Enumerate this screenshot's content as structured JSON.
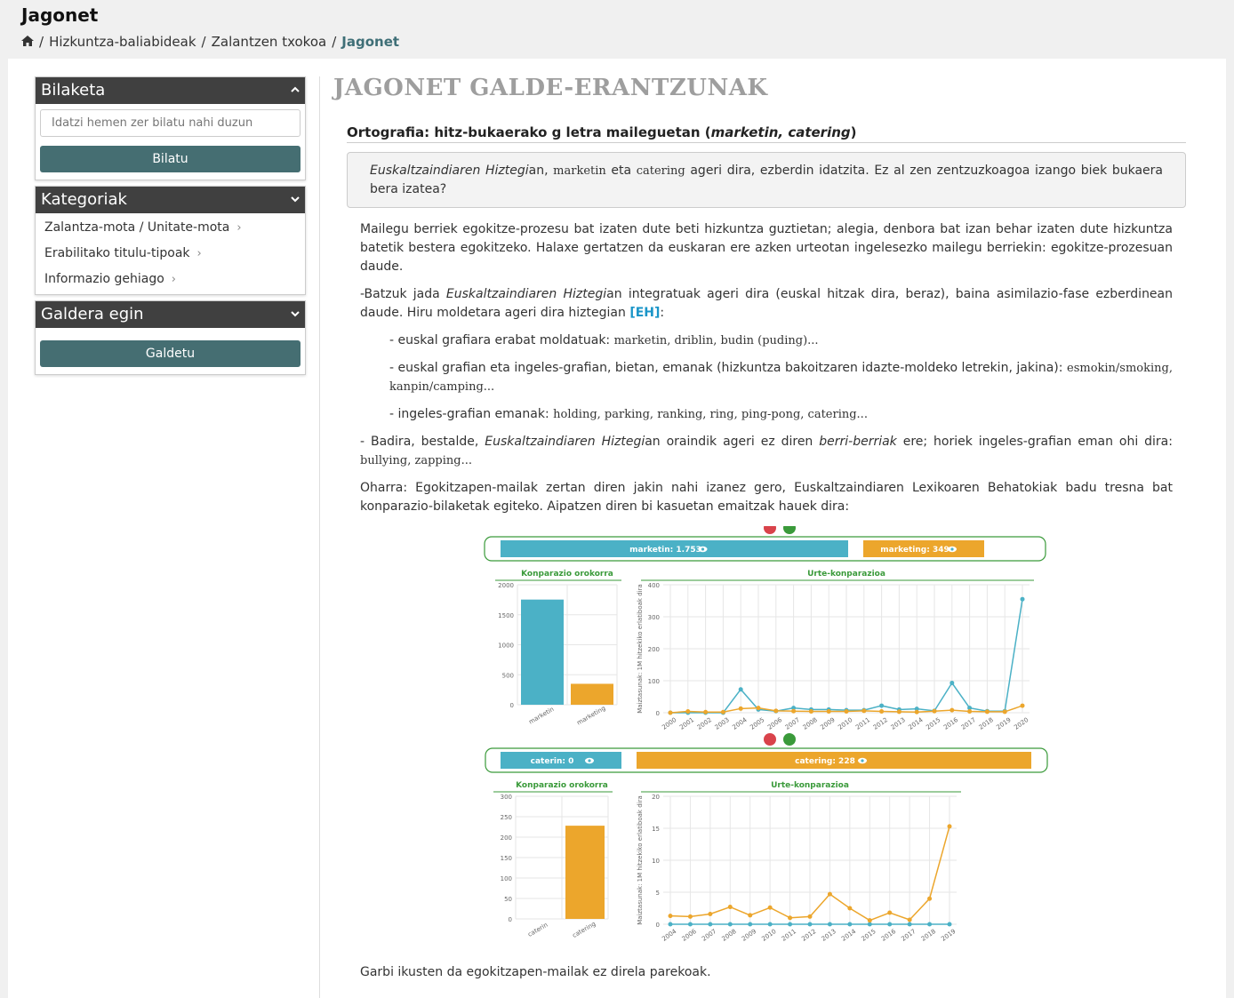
{
  "header": {
    "title": "Jagonet",
    "breadcrumb": [
      "Hizkuntza-baliabideak",
      "Zalantzen txokoa",
      "Jagonet"
    ]
  },
  "sidebar": {
    "search": {
      "title": "Bilaketa",
      "placeholder": "Idatzi hemen zer bilatu nahi duzun",
      "button": "Bilatu"
    },
    "categories": {
      "title": "Kategoriak",
      "items": [
        "Zalantza-mota / Unitate-mota",
        "Erabilitako titulu-tipoak",
        "Informazio gehiago"
      ]
    },
    "ask": {
      "title": "Galdera egin",
      "button": "Galdetu"
    }
  },
  "content": {
    "page_title": "JAGONET GALDE-ERANTZUNAK",
    "question_title": "Ortografia: hitz-bukaerako g letra maileguetan (",
    "question_title_em": "marketin, catering",
    "question_title_end": ")",
    "question": {
      "em1": "Euskaltzaindiaren Hiztegi",
      "t1": "an, ",
      "s1": "marketin",
      "t2": " eta ",
      "s2": "catering",
      "t3": " ageri dira, ezberdin idatzita. Ez al zen zentzuzkoagoa izango biek bukaera bera izatea?"
    },
    "p1": "Mailegu berriek egokitze-prozesu bat izaten dute beti hizkuntza guztietan; alegia, denbora bat izan behar izaten dute hizkuntza batetik bestera egokitzeko. Halaxe gertatzen da euskaran ere azken urteotan ingelesezko mailegu berriekin: egokitze-prozesuan daude.",
    "p2": {
      "t1": "-Batzuk jada ",
      "em": "Euskaltzaindiaren Hiztegi",
      "t2": "an integratuak ageri dira (euskal hitzak dira, beraz), baina asimilazio-fase ezberdinean daude. Hiru moldetara ageri dira hiztegian ",
      "link": "[EH]",
      "t3": ":"
    },
    "l1": {
      "t": "- euskal grafiara erabat moldatuak: ",
      "s": "marketin, driblin, budin (puding)..."
    },
    "l2": {
      "t": "- euskal grafian eta ingeles-grafian, bietan, emanak (hizkuntza bakoitzaren idazte-moldeko letrekin, jakina): ",
      "s": "esmokin/smoking, kanpin/camping..."
    },
    "l3": {
      "t": "- ingeles-grafian emanak: ",
      "s": "holding, parking, ranking, ring, ping-pong, catering..."
    },
    "p3": {
      "t1": "- Badira, bestalde, ",
      "em1": "Euskaltzaindiaren Hiztegi",
      "t2": "an oraindik ageri ez diren ",
      "em2": "berri-berriak",
      "t3": " ere; horiek ingeles-grafian eman ohi dira: ",
      "s": "bullying, zapping..."
    },
    "p4": "Oharra: Egokitzapen-mailak zertan diren jakin nahi izanez gero, Euskaltzaindiaren Lexikoaren Behatokiak badu tresna bat konparazio-bilaketak egiteko. Aipatzen diren bi kasuetan emaitzak hauek dira:",
    "p5": "Garbi ikusten da egokitzapen-mailak ez direla parekoak."
  },
  "colors": {
    "blue": "#4bb1c6",
    "orange": "#eca62c",
    "green": "#3a9a3a",
    "accent": "#456e72"
  },
  "chart_data": [
    {
      "type": "bar",
      "title": "Konparazio orokorra",
      "legend": [
        {
          "name": "marketin",
          "value": "1.753"
        },
        {
          "name": "marketing",
          "value": "349"
        }
      ],
      "categories": [
        "marketin",
        "marketing"
      ],
      "values": [
        1753,
        349
      ],
      "ylim": [
        0,
        2000
      ],
      "yticks": [
        0,
        500,
        1000,
        1500,
        2000
      ]
    },
    {
      "type": "line",
      "title": "Urte-konparazioa",
      "ylabel": "Maiztasunak: 1M hitzekiko erlatiboak dira",
      "ylim": [
        0,
        400
      ],
      "yticks": [
        0,
        100,
        200,
        300,
        400
      ],
      "x": [
        "2000",
        "2001",
        "2002",
        "2003",
        "2004",
        "2005",
        "2006",
        "2007",
        "2008",
        "2009",
        "2010",
        "2011",
        "2012",
        "2013",
        "2014",
        "2015",
        "2016",
        "2017",
        "2018",
        "2019",
        "2020"
      ],
      "series": [
        {
          "name": "marketin",
          "values": [
            0,
            0,
            0,
            0,
            73,
            10,
            5,
            15,
            10,
            10,
            8,
            8,
            22,
            10,
            12,
            6,
            93,
            15,
            5,
            5,
            355
          ]
        },
        {
          "name": "marketing",
          "values": [
            0,
            4,
            2,
            2,
            13,
            15,
            6,
            5,
            4,
            4,
            4,
            6,
            4,
            3,
            2,
            5,
            8,
            4,
            3,
            3,
            22
          ]
        }
      ]
    },
    {
      "type": "bar",
      "title": "Konparazio orokorra",
      "legend": [
        {
          "name": "caterin",
          "value": "0"
        },
        {
          "name": "catering",
          "value": "228"
        }
      ],
      "categories": [
        "caterin",
        "catering"
      ],
      "values": [
        0,
        228
      ],
      "ylim": [
        0,
        300
      ],
      "yticks": [
        0,
        50,
        100,
        150,
        200,
        250,
        300
      ]
    },
    {
      "type": "line",
      "title": "Urte-konparazioa",
      "ylabel": "Maiztasunak: 1M hitzekiko erlatiboak dira",
      "ylim": [
        0,
        20
      ],
      "yticks": [
        0,
        5,
        10,
        15,
        20
      ],
      "x": [
        "2004",
        "2006",
        "2007",
        "2008",
        "2009",
        "2010",
        "2011",
        "2012",
        "2013",
        "2014",
        "2015",
        "2016",
        "2017",
        "2018",
        "2019"
      ],
      "series": [
        {
          "name": "caterin",
          "values": [
            0,
            0,
            0,
            0,
            0,
            0,
            0,
            0,
            0,
            0,
            0,
            0,
            0,
            0,
            0
          ]
        },
        {
          "name": "catering",
          "values": [
            1.3,
            1.2,
            1.6,
            2.7,
            1.4,
            2.6,
            1.0,
            1.2,
            4.7,
            2.5,
            0.6,
            1.8,
            0.7,
            4.0,
            15.3
          ]
        }
      ]
    }
  ]
}
